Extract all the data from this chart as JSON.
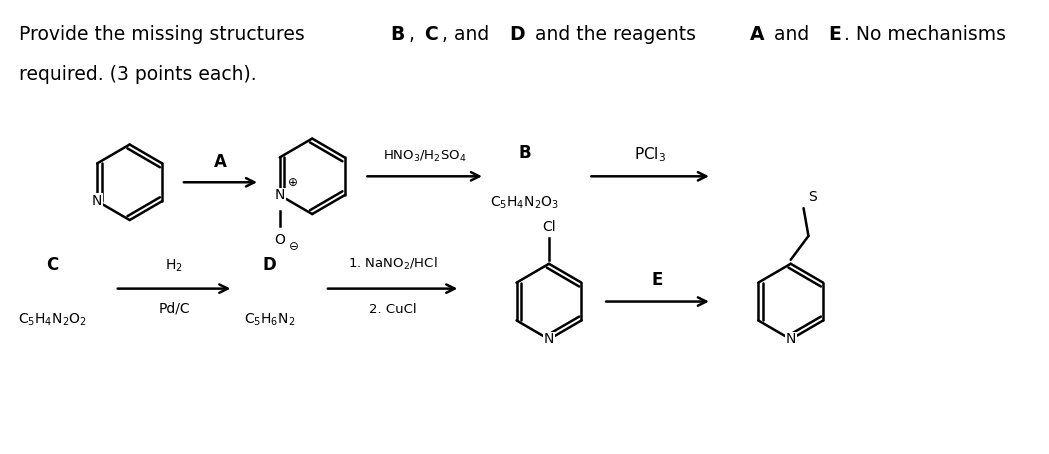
{
  "bg_color": "#ffffff",
  "text_color": "#000000",
  "font_size_title": 13.5,
  "font_size_label": 12,
  "font_size_formula": 10,
  "font_size_small": 9.5,
  "title1_parts": [
    [
      "Provide the missing structures ",
      false
    ],
    [
      "B",
      true
    ],
    [
      ", ",
      false
    ],
    [
      "C",
      true
    ],
    [
      ", and ",
      false
    ],
    [
      "D",
      true
    ],
    [
      " and the reagents ",
      false
    ],
    [
      "A",
      true
    ],
    [
      " and ",
      false
    ],
    [
      "E",
      true
    ],
    [
      ". No mechanisms",
      false
    ]
  ],
  "title2_parts": [
    [
      "required. (3 points each).",
      false
    ]
  ]
}
